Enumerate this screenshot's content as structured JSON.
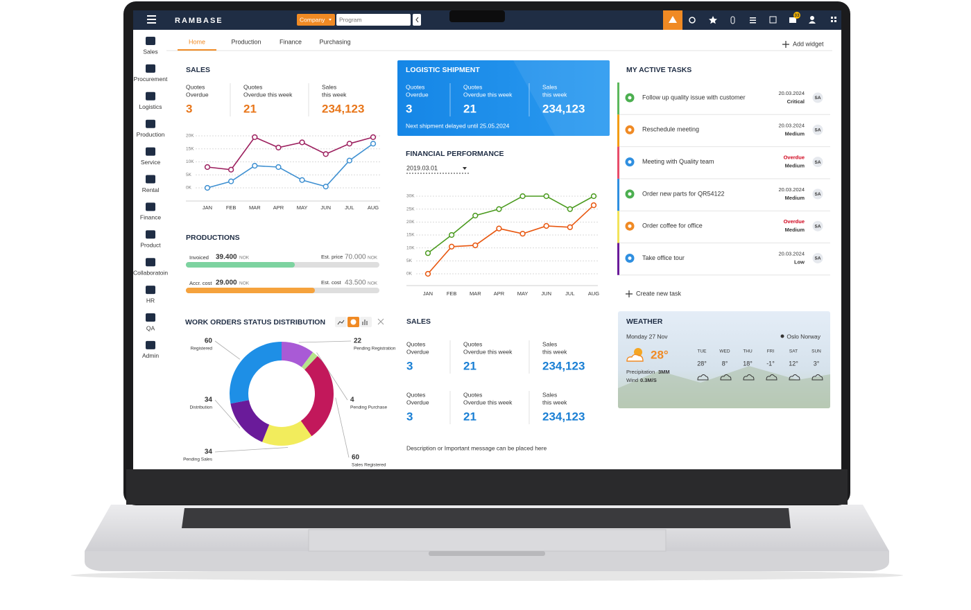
{
  "topbar": {
    "logo": "RAMBASE",
    "company": "Company",
    "program": "Program",
    "mail_count": "33"
  },
  "tabs": [
    "Home",
    "Production",
    "Finance",
    "Purchasing"
  ],
  "add_widget": "Add widget",
  "sidebar": [
    "Sales",
    "Procurement",
    "Logistics",
    "Production",
    "Service",
    "Rental",
    "Finance",
    "Product",
    "Collaboratoin",
    "HR",
    "QA",
    "Admin"
  ],
  "sales": {
    "title": "SALES",
    "stats": [
      {
        "label": [
          "Quotes",
          "Overdue"
        ],
        "value": "3"
      },
      {
        "label": [
          "Quotes",
          "Overdue this week"
        ],
        "value": "21"
      },
      {
        "label": [
          "Sales",
          "this week"
        ],
        "value": "234,123"
      }
    ],
    "chart": {
      "type": "line",
      "categories": [
        "JAN",
        "FEB",
        "MAR",
        "APR",
        "MAY",
        "JUN",
        "JUL",
        "AUG"
      ],
      "series": [
        {
          "color": "#9c1f5e",
          "values": [
            8000,
            7000,
            19500,
            15500,
            17500,
            13000,
            17000,
            19500
          ]
        },
        {
          "color": "#3d8fd1",
          "values": [
            0,
            2500,
            8500,
            8000,
            3000,
            500,
            10500,
            17000
          ]
        }
      ],
      "ylim": [
        0,
        20000
      ],
      "yticks": [
        {
          "value": 0,
          "label": "0K"
        },
        {
          "value": 5000,
          "label": "5K"
        },
        {
          "value": 10000,
          "label": "10K"
        },
        {
          "value": 15000,
          "label": "15K"
        },
        {
          "value": 20000,
          "label": "20K"
        }
      ],
      "grid": true
    }
  },
  "productions": {
    "title": "PRODUCTIONS",
    "rows": [
      {
        "label": "Invoiced",
        "value": 39400,
        "value_label": "39.400",
        "unit": "NOK",
        "ref_label": "Est. price",
        "ref": 70000,
        "ref_value_label": "70.000",
        "ref_unit": "NOK",
        "color": "#7dd3a0"
      },
      {
        "label": "Accr. cost",
        "value": 29000,
        "value_label": "29.000",
        "unit": "NOK",
        "ref_label": "Est. cost",
        "ref": 43500,
        "ref_value_label": "43.500",
        "ref_unit": "NOK",
        "color": "#f5a23d"
      }
    ]
  },
  "work_orders": {
    "title": "WORK ORDERS STATUS DISTRIBUTION",
    "chart": {
      "type": "pie",
      "categories": [
        "Pending Registration",
        "Pending Purchase",
        "Sales Registered",
        "Pending Sales",
        "Distribution",
        "Registered"
      ],
      "values": [
        22,
        4,
        60,
        34,
        34,
        60
      ],
      "colors": [
        "#a95ad6",
        "#b6e38c",
        "#c2185b",
        "#f2ec5c",
        "#6a1b9a",
        "#1e8fe6"
      ]
    }
  },
  "logistic": {
    "title": "LOGISTIC SHIPMENT",
    "stats": [
      {
        "label": [
          "Quotes",
          "Overdue"
        ],
        "value": "3"
      },
      {
        "label": [
          "Quotes",
          "Overdue this week"
        ],
        "value": "21"
      },
      {
        "label": [
          "Sales",
          "this week"
        ],
        "value": "234,123"
      }
    ],
    "note": "Next shipment delayed until 25.05.2024"
  },
  "financial": {
    "title": "FINANCIAL PERFORMANCE",
    "date": "2019.03.01",
    "chart": {
      "type": "line",
      "categories": [
        "JAN",
        "FEB",
        "MAR",
        "APR",
        "MAY",
        "JUN",
        "JUL",
        "AUG"
      ],
      "series": [
        {
          "color": "#4a9a1e",
          "values": [
            8000,
            15000,
            22500,
            25000,
            30000,
            30000,
            25000,
            30000
          ]
        },
        {
          "color": "#e8560e",
          "values": [
            0,
            10500,
            11000,
            17500,
            15500,
            18500,
            18000,
            26500
          ]
        }
      ],
      "ylim": [
        0,
        30000
      ],
      "yticks": [
        {
          "value": 0,
          "label": "0K"
        },
        {
          "value": 5000,
          "label": "5K"
        },
        {
          "value": 10000,
          "label": "10K"
        },
        {
          "value": 15000,
          "label": "15K"
        },
        {
          "value": 20000,
          "label": "20K"
        },
        {
          "value": 25000,
          "label": "25K"
        },
        {
          "value": 30000,
          "label": "30K"
        }
      ],
      "grid": true
    }
  },
  "sales2": {
    "title": "SALES",
    "stats": [
      {
        "label": [
          "Quotes",
          "Overdue"
        ],
        "value": "3"
      },
      {
        "label": [
          "Quotes",
          "Overdue this week"
        ],
        "value": "21"
      },
      {
        "label": [
          "Sales",
          "this week"
        ],
        "value": "234,123"
      },
      {
        "label": [
          "Quotes",
          "Overdue"
        ],
        "value": "3"
      },
      {
        "label": [
          "Quotes",
          "Overdue this week"
        ],
        "value": "21"
      },
      {
        "label": [
          "Sales",
          "this week"
        ],
        "value": "234,123"
      }
    ],
    "note": "Description or Important message can be placed here"
  },
  "tasks": {
    "title": "MY ACTIVE TASKS",
    "create": "Create new task",
    "items": [
      {
        "title": "Follow up quality issue with customer",
        "date": "20.03.2024",
        "priority": "Critical",
        "assignee": "SA",
        "bar_color": "#5cb85c",
        "icon_color": "#4caf50",
        "date_color": "#333333"
      },
      {
        "title": "Reschedule meeting",
        "date": "20.03.2024",
        "priority": "Medium",
        "assignee": "SA",
        "bar_color": "#f39c12",
        "icon_color": "#f08a24",
        "date_color": "#333333"
      },
      {
        "title": "Meeting with Quality team",
        "date": "Overdue",
        "priority": "Medium",
        "assignee": "SA",
        "bar_color": "#e84c6a",
        "icon_color": "#2f8fe0",
        "date_color": "#d0021b"
      },
      {
        "title": "Order new parts for QR54122",
        "date": "20.03.2024",
        "priority": "Medium",
        "assignee": "SA",
        "bar_color": "#2f8fe0",
        "icon_color": "#4caf50",
        "date_color": "#333333"
      },
      {
        "title": "Order coffee for office",
        "date": "Overdue",
        "priority": "Medium",
        "assignee": "SA",
        "bar_color": "#f2e35a",
        "icon_color": "#f08a24",
        "date_color": "#d0021b"
      },
      {
        "title": "Take office tour",
        "date": "20.03.2024",
        "priority": "Low",
        "assignee": "SA",
        "bar_color": "#6a1b9a",
        "icon_color": "#2f8fe0",
        "date_color": "#333333"
      }
    ]
  },
  "weather": {
    "title": "WEATHER",
    "date": "Monday 27 Nov",
    "location": "Oslo Norway",
    "temperature": "28°",
    "precipitation_label": "Precipitation",
    "precipitation": "3MM",
    "wind_label": "Wind",
    "wind": "0.3M/S",
    "forecast": [
      {
        "day": "TUE",
        "temp": "28°"
      },
      {
        "day": "WED",
        "temp": "8°"
      },
      {
        "day": "THU",
        "temp": "18°"
      },
      {
        "day": "FRI",
        "temp": "-1°"
      },
      {
        "day": "SAT",
        "temp": "12°"
      },
      {
        "day": "SUN",
        "temp": "3°"
      }
    ]
  }
}
